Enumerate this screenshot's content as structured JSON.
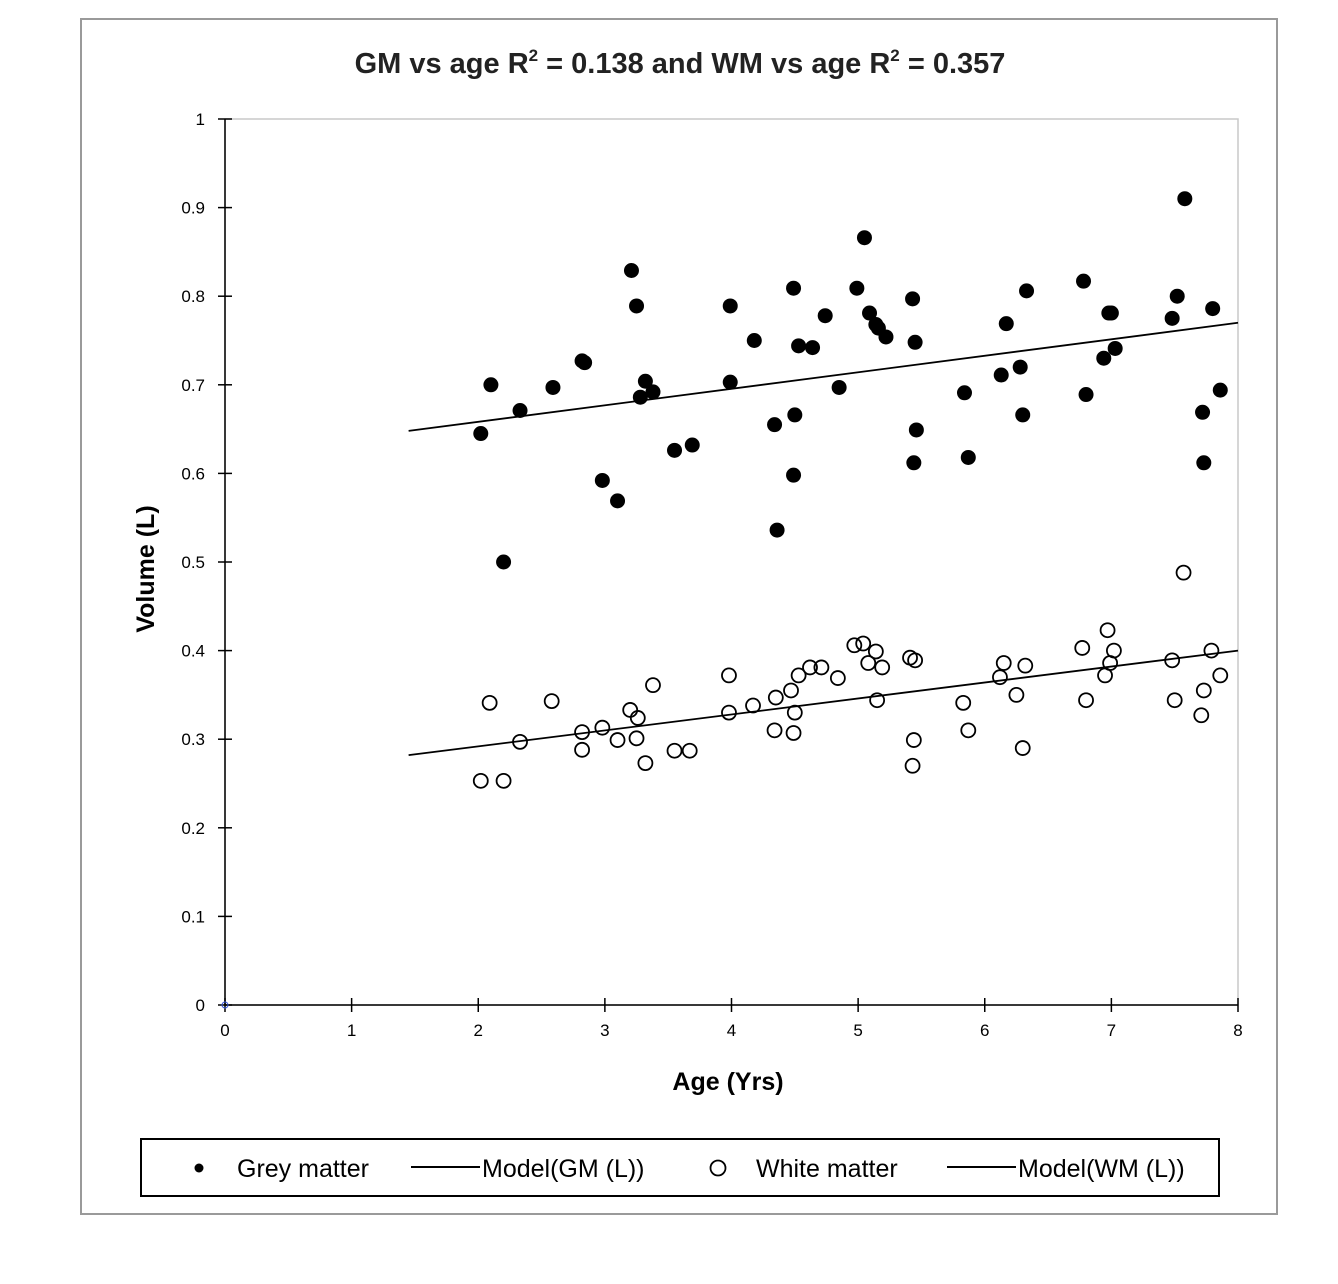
{
  "chart_data": {
    "type": "scatter",
    "title": "GM vs age R² = 0.138 and WM vs age R² = 0.357",
    "title_parts": {
      "a": "GM  vs age R",
      "b": "2",
      "c": " = 0.138 and WM vs age R",
      "d": "2",
      "e": " = 0.357"
    },
    "xlabel": "Age (Yrs)",
    "ylabel": "Volume (L)",
    "xlim": [
      0,
      8
    ],
    "ylim": [
      0,
      1
    ],
    "xticks": [
      "0",
      "1",
      "2",
      "3",
      "4",
      "5",
      "6",
      "7",
      "8"
    ],
    "yticks": [
      "0",
      "0.1",
      "0.2",
      "0.3",
      "0.4",
      "0.5",
      "0.6",
      "0.7",
      "0.8",
      "0.9",
      "1"
    ],
    "grid": false,
    "legend_position": "bottom",
    "series": [
      {
        "name": "Grey matter",
        "marker": "filled-circle",
        "color": "#000000",
        "points": [
          [
            2.02,
            0.645
          ],
          [
            2.1,
            0.7
          ],
          [
            2.2,
            0.5
          ],
          [
            2.33,
            0.671
          ],
          [
            2.59,
            0.697
          ],
          [
            2.82,
            0.727
          ],
          [
            2.84,
            0.725
          ],
          [
            2.98,
            0.592
          ],
          [
            3.1,
            0.569
          ],
          [
            3.21,
            0.829
          ],
          [
            3.25,
            0.789
          ],
          [
            3.28,
            0.686
          ],
          [
            3.32,
            0.704
          ],
          [
            3.38,
            0.692
          ],
          [
            3.55,
            0.626
          ],
          [
            3.69,
            0.632
          ],
          [
            3.99,
            0.789
          ],
          [
            3.99,
            0.703
          ],
          [
            4.18,
            0.75
          ],
          [
            4.34,
            0.655
          ],
          [
            4.36,
            0.536
          ],
          [
            4.49,
            0.809
          ],
          [
            4.49,
            0.598
          ],
          [
            4.5,
            0.666
          ],
          [
            4.53,
            0.744
          ],
          [
            4.64,
            0.742
          ],
          [
            4.74,
            0.778
          ],
          [
            4.85,
            0.697
          ],
          [
            4.99,
            0.809
          ],
          [
            5.05,
            0.866
          ],
          [
            5.09,
            0.781
          ],
          [
            5.14,
            0.768
          ],
          [
            5.16,
            0.764
          ],
          [
            5.22,
            0.754
          ],
          [
            5.43,
            0.797
          ],
          [
            5.44,
            0.612
          ],
          [
            5.45,
            0.748
          ],
          [
            5.46,
            0.649
          ],
          [
            5.84,
            0.691
          ],
          [
            5.87,
            0.618
          ],
          [
            6.13,
            0.711
          ],
          [
            6.17,
            0.769
          ],
          [
            6.28,
            0.72
          ],
          [
            6.3,
            0.666
          ],
          [
            6.33,
            0.806
          ],
          [
            6.78,
            0.817
          ],
          [
            6.8,
            0.689
          ],
          [
            6.94,
            0.73
          ],
          [
            6.98,
            0.781
          ],
          [
            7.0,
            0.781
          ],
          [
            7.03,
            0.741
          ],
          [
            7.48,
            0.775
          ],
          [
            7.52,
            0.8
          ],
          [
            7.58,
            0.91
          ],
          [
            7.72,
            0.669
          ],
          [
            7.73,
            0.612
          ],
          [
            7.8,
            0.786
          ],
          [
            7.86,
            0.694
          ]
        ]
      },
      {
        "name": "Model(GM (L))",
        "marker": "line",
        "color": "#000000",
        "points": [
          [
            1.45,
            0.648
          ],
          [
            8.0,
            0.77
          ]
        ]
      },
      {
        "name": "White matter",
        "marker": "open-circle",
        "color": "#000000",
        "points": [
          [
            2.02,
            0.253
          ],
          [
            2.09,
            0.341
          ],
          [
            2.2,
            0.253
          ],
          [
            2.33,
            0.297
          ],
          [
            2.58,
            0.343
          ],
          [
            2.82,
            0.308
          ],
          [
            2.82,
            0.288
          ],
          [
            2.98,
            0.313
          ],
          [
            3.1,
            0.299
          ],
          [
            3.2,
            0.333
          ],
          [
            3.25,
            0.301
          ],
          [
            3.26,
            0.324
          ],
          [
            3.32,
            0.273
          ],
          [
            3.38,
            0.361
          ],
          [
            3.55,
            0.287
          ],
          [
            3.67,
            0.287
          ],
          [
            3.98,
            0.372
          ],
          [
            3.98,
            0.33
          ],
          [
            4.17,
            0.338
          ],
          [
            4.34,
            0.31
          ],
          [
            4.35,
            0.347
          ],
          [
            4.47,
            0.355
          ],
          [
            4.49,
            0.307
          ],
          [
            4.5,
            0.33
          ],
          [
            4.53,
            0.372
          ],
          [
            4.62,
            0.381
          ],
          [
            4.71,
            0.381
          ],
          [
            4.84,
            0.369
          ],
          [
            4.97,
            0.406
          ],
          [
            5.04,
            0.408
          ],
          [
            5.08,
            0.386
          ],
          [
            5.14,
            0.399
          ],
          [
            5.15,
            0.344
          ],
          [
            5.19,
            0.381
          ],
          [
            5.41,
            0.392
          ],
          [
            5.43,
            0.27
          ],
          [
            5.44,
            0.299
          ],
          [
            5.45,
            0.389
          ],
          [
            5.83,
            0.341
          ],
          [
            5.87,
            0.31
          ],
          [
            6.12,
            0.37
          ],
          [
            6.15,
            0.386
          ],
          [
            6.25,
            0.35
          ],
          [
            6.3,
            0.29
          ],
          [
            6.32,
            0.383
          ],
          [
            6.77,
            0.403
          ],
          [
            6.8,
            0.344
          ],
          [
            6.95,
            0.372
          ],
          [
            6.97,
            0.423
          ],
          [
            6.99,
            0.386
          ],
          [
            7.02,
            0.4
          ],
          [
            7.48,
            0.389
          ],
          [
            7.5,
            0.344
          ],
          [
            7.57,
            0.488
          ],
          [
            7.71,
            0.327
          ],
          [
            7.73,
            0.355
          ],
          [
            7.79,
            0.4
          ],
          [
            7.86,
            0.372
          ]
        ]
      },
      {
        "name": "Model(WM (L))",
        "marker": "line",
        "color": "#000000",
        "points": [
          [
            1.45,
            0.282
          ],
          [
            8.0,
            0.4
          ]
        ]
      }
    ]
  },
  "legend": {
    "items": [
      {
        "label": "Grey matter",
        "symbol": "filled-dot"
      },
      {
        "label": "Model(GM (L))",
        "symbol": "line"
      },
      {
        "label": "White matter",
        "symbol": "open-circle"
      },
      {
        "label": "Model(WM (L))",
        "symbol": "line"
      }
    ]
  }
}
